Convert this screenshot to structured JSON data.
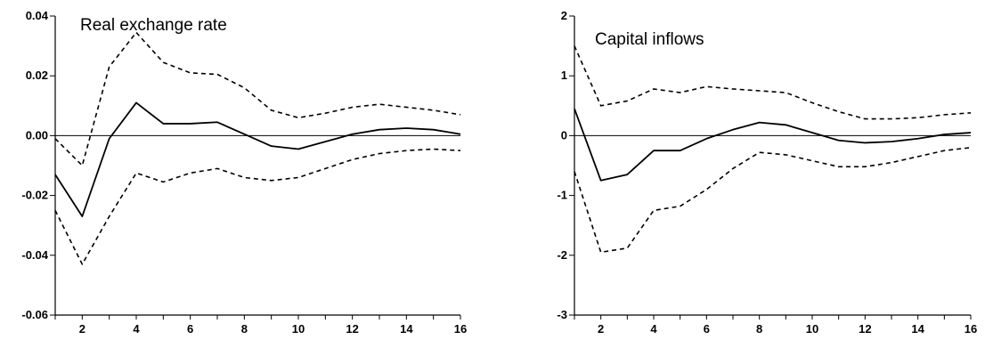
{
  "chart_data": [
    {
      "type": "line",
      "title": "Real exchange rate",
      "xlabel": "",
      "ylabel": "",
      "x": [
        1,
        2,
        3,
        4,
        5,
        6,
        7,
        8,
        9,
        10,
        11,
        12,
        13,
        14,
        15,
        16
      ],
      "xlim": [
        1,
        16
      ],
      "ylim": [
        -0.06,
        0.04
      ],
      "x_tick_labels": [
        "2",
        "4",
        "6",
        "8",
        "10",
        "12",
        "14",
        "16"
      ],
      "x_tick_values": [
        2,
        4,
        6,
        8,
        10,
        12,
        14,
        16
      ],
      "y_tick_labels": [
        "0.04",
        "0.02",
        "0.00",
        "-0.02",
        "-0.04",
        "-0.06"
      ],
      "y_tick_values": [
        0.04,
        0.02,
        0.0,
        -0.02,
        -0.04,
        -0.06
      ],
      "zero_line": true,
      "grid": false,
      "series": [
        {
          "role": "response",
          "style": "solid",
          "values": [
            -0.013,
            -0.027,
            -0.001,
            0.011,
            0.004,
            0.004,
            0.0045,
            0.0005,
            -0.0035,
            -0.0045,
            -0.002,
            0.0005,
            0.002,
            0.0025,
            0.002,
            0.0005
          ]
        },
        {
          "role": "upper-band",
          "style": "dashed",
          "values": [
            -0.001,
            -0.01,
            0.023,
            0.0345,
            0.0245,
            0.021,
            0.0205,
            0.016,
            0.0085,
            0.006,
            0.0075,
            0.0095,
            0.0105,
            0.0095,
            0.0085,
            0.007
          ]
        },
        {
          "role": "lower-band",
          "style": "dashed",
          "values": [
            -0.025,
            -0.043,
            -0.027,
            -0.0125,
            -0.0155,
            -0.0125,
            -0.011,
            -0.014,
            -0.015,
            -0.014,
            -0.011,
            -0.008,
            -0.006,
            -0.005,
            -0.0045,
            -0.005
          ]
        }
      ]
    },
    {
      "type": "line",
      "title": "Capital inflows",
      "xlabel": "",
      "ylabel": "",
      "x": [
        1,
        2,
        3,
        4,
        5,
        6,
        7,
        8,
        9,
        10,
        11,
        12,
        13,
        14,
        15,
        16
      ],
      "xlim": [
        1,
        16
      ],
      "ylim": [
        -3,
        2
      ],
      "x_tick_labels": [
        "2",
        "4",
        "6",
        "8",
        "10",
        "12",
        "14",
        "16"
      ],
      "x_tick_values": [
        2,
        4,
        6,
        8,
        10,
        12,
        14,
        16
      ],
      "y_tick_labels": [
        "2",
        "1",
        "0",
        "-1",
        "-2",
        "-3"
      ],
      "y_tick_values": [
        2,
        1,
        0,
        -1,
        -2,
        -3
      ],
      "zero_line": true,
      "grid": false,
      "series": [
        {
          "role": "response",
          "style": "solid",
          "values": [
            0.45,
            -0.75,
            -0.65,
            -0.25,
            -0.25,
            -0.05,
            0.1,
            0.22,
            0.18,
            0.05,
            -0.08,
            -0.12,
            -0.1,
            -0.05,
            0.02,
            0.05
          ]
        },
        {
          "role": "upper-band",
          "style": "dashed",
          "values": [
            1.5,
            0.5,
            0.58,
            0.78,
            0.72,
            0.82,
            0.78,
            0.75,
            0.72,
            0.55,
            0.4,
            0.28,
            0.28,
            0.3,
            0.35,
            0.38
          ]
        },
        {
          "role": "lower-band",
          "style": "dashed",
          "values": [
            -0.6,
            -1.95,
            -1.88,
            -1.25,
            -1.18,
            -0.9,
            -0.55,
            -0.28,
            -0.32,
            -0.42,
            -0.52,
            -0.52,
            -0.45,
            -0.35,
            -0.25,
            -0.2
          ]
        }
      ]
    }
  ]
}
